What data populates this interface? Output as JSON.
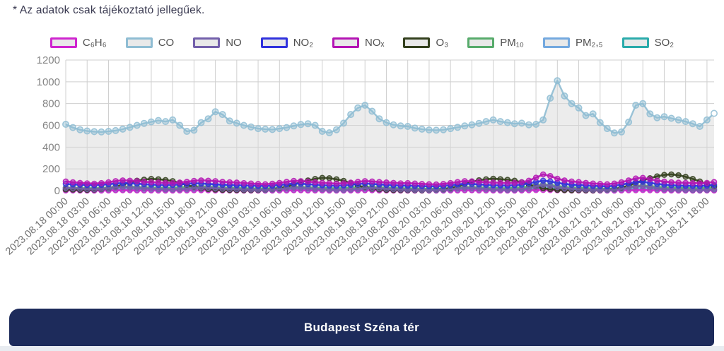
{
  "disclaimer": "* Az adatok csak tájékoztató jellegűek.",
  "station": {
    "name": "Budapest Széna tér"
  },
  "colors": {
    "banner": "#1d2b5b",
    "grid": "#cfcfcf",
    "area_fill": "#d9d9d9"
  },
  "chart_data": {
    "type": "line",
    "title": "",
    "xlabel": "",
    "ylabel": "",
    "y_axis": {
      "min": 0,
      "max": 1200,
      "tick_step": 200,
      "ticks": [
        "0",
        "200",
        "400",
        "600",
        "800",
        "1000",
        "1200"
      ]
    },
    "label_interval": 3,
    "x_labels": [
      "2023.08.18 00:00",
      "2023.08.18 03:00",
      "2023.08.18 06:00",
      "2023.08.18 09:00",
      "2023.08.18 12:00",
      "2023.08.18 15:00",
      "2023.08.18 18:00",
      "2023.08.18 21:00",
      "2023.08.19 00:00",
      "2023.08.19 03:00",
      "2023.08.19 06:00",
      "2023.08.19 09:00",
      "2023.08.19 12:00",
      "2023.08.19 15:00",
      "2023.08.19 18:00",
      "2023.08.19 21:00",
      "2023.08.20 00:00",
      "2023.08.20 03:00",
      "2023.08.20 06:00",
      "2023.08.20 09:00",
      "2023.08.20 12:00",
      "2023.08.20 15:00",
      "2023.08.20 18:00",
      "2023.08.20 21:00",
      "2023.08.21 00:00",
      "2023.08.21 03:00",
      "2023.08.21 06:00",
      "2023.08.21 09:00",
      "2023.08.21 12:00",
      "2023.08.21 15:00",
      "2023.08.21 18:00"
    ],
    "series": [
      {
        "name": "C₆H₆",
        "key": "c6h6",
        "color": "#cf25cf",
        "z": 4,
        "fill": false,
        "values": [
          2,
          2,
          1,
          1,
          1,
          1,
          2,
          3,
          3,
          3,
          2,
          2,
          2,
          1,
          1,
          1,
          2,
          2,
          3,
          3,
          3,
          2,
          2,
          2,
          1,
          1,
          1,
          1,
          1,
          1,
          2,
          2,
          3,
          3,
          2,
          2,
          2,
          1,
          1,
          1,
          2,
          2,
          3,
          3,
          2,
          2,
          1,
          1,
          1,
          1,
          1,
          1,
          1,
          1,
          2,
          2,
          3,
          3,
          2,
          2,
          2,
          1,
          1,
          1,
          2,
          3,
          5,
          6,
          5,
          4,
          3,
          2,
          2,
          1,
          1,
          1,
          1,
          1,
          2,
          3,
          4,
          5,
          4,
          3,
          2,
          2,
          1,
          1,
          1,
          1,
          2,
          2
        ]
      },
      {
        "name": "CO",
        "key": "co",
        "color": "#8fbdd3",
        "z": 0,
        "fill": true,
        "values": [
          610,
          580,
          560,
          548,
          542,
          540,
          545,
          552,
          565,
          582,
          600,
          618,
          632,
          645,
          635,
          650,
          600,
          545,
          555,
          625,
          660,
          725,
          700,
          640,
          620,
          600,
          585,
          570,
          565,
          562,
          570,
          580,
          595,
          608,
          615,
          600,
          545,
          532,
          560,
          620,
          700,
          760,
          785,
          730,
          660,
          625,
          605,
          595,
          590,
          575,
          565,
          558,
          555,
          560,
          570,
          582,
          595,
          605,
          618,
          635,
          650,
          635,
          625,
          615,
          620,
          605,
          610,
          650,
          850,
          1010,
          870,
          800,
          760,
          690,
          705,
          625,
          570,
          530,
          540,
          630,
          785,
          800,
          705,
          670,
          680,
          665,
          650,
          635,
          615,
          590,
          650,
          710
        ]
      },
      {
        "name": "NO",
        "key": "no",
        "color": "#7360ab",
        "z": 6,
        "fill": false,
        "values": [
          25,
          22,
          18,
          15,
          14,
          16,
          22,
          30,
          34,
          30,
          26,
          22,
          18,
          15,
          13,
          12,
          14,
          18,
          24,
          28,
          26,
          22,
          18,
          15,
          13,
          11,
          10,
          9,
          8,
          10,
          15,
          22,
          28,
          26,
          22,
          17,
          13,
          10,
          8,
          8,
          11,
          16,
          22,
          24,
          20,
          16,
          13,
          11,
          9,
          8,
          7,
          6,
          6,
          8,
          12,
          20,
          26,
          24,
          20,
          16,
          12,
          10,
          8,
          9,
          13,
          22,
          38,
          52,
          44,
          32,
          22,
          16,
          12,
          10,
          8,
          7,
          6,
          9,
          16,
          28,
          38,
          42,
          32,
          22,
          15,
          11,
          9,
          8,
          7,
          6,
          8,
          12
        ]
      },
      {
        "name": "NO₂",
        "key": "no2",
        "color": "#3032dd",
        "z": 7,
        "fill": false,
        "values": [
          62,
          58,
          55,
          52,
          50,
          54,
          60,
          66,
          70,
          68,
          65,
          60,
          56,
          53,
          51,
          53,
          58,
          64,
          68,
          66,
          62,
          58,
          55,
          52,
          50,
          48,
          46,
          44,
          43,
          46,
          52,
          60,
          66,
          64,
          60,
          55,
          50,
          47,
          45,
          48,
          54,
          62,
          66,
          63,
          58,
          54,
          50,
          47,
          46,
          44,
          42,
          40,
          40,
          44,
          50,
          58,
          64,
          62,
          58,
          54,
          50,
          48,
          46,
          50,
          56,
          68,
          80,
          92,
          85,
          72,
          62,
          55,
          52,
          48,
          44,
          42,
          40,
          45,
          55,
          68,
          78,
          82,
          72,
          62,
          55,
          50,
          47,
          45,
          44,
          43,
          46,
          52
        ]
      },
      {
        "name": "NOₓ",
        "key": "nox",
        "color": "#b414b4",
        "z": 8,
        "fill": false,
        "values": [
          85,
          78,
          72,
          68,
          65,
          70,
          78,
          88,
          95,
          92,
          88,
          82,
          78,
          75,
          72,
          70,
          75,
          82,
          90,
          95,
          92,
          88,
          82,
          78,
          75,
          70,
          66,
          62,
          60,
          64,
          72,
          82,
          90,
          88,
          84,
          78,
          72,
          68,
          65,
          68,
          74,
          82,
          88,
          85,
          80,
          76,
          72,
          68,
          70,
          66,
          62,
          60,
          58,
          62,
          70,
          80,
          88,
          86,
          82,
          78,
          74,
          72,
          70,
          72,
          78,
          92,
          120,
          150,
          135,
          110,
          95,
          85,
          80,
          72,
          66,
          62,
          60,
          66,
          78,
          95,
          112,
          118,
          105,
          92,
          84,
          78,
          74,
          72,
          70,
          68,
          72,
          80
        ]
      },
      {
        "name": "O₃",
        "key": "o3",
        "color": "#33401d",
        "z": 5,
        "fill": false,
        "values": [
          12,
          10,
          8,
          8,
          10,
          14,
          20,
          35,
          55,
          75,
          92,
          102,
          108,
          105,
          98,
          88,
          72,
          52,
          35,
          22,
          15,
          10,
          8,
          6,
          6,
          5,
          5,
          6,
          8,
          12,
          20,
          38,
          58,
          78,
          95,
          108,
          118,
          115,
          105,
          90,
          70,
          48,
          30,
          18,
          12,
          8,
          6,
          5,
          5,
          5,
          4,
          5,
          7,
          12,
          22,
          40,
          62,
          82,
          96,
          105,
          110,
          106,
          100,
          92,
          78,
          58,
          38,
          22,
          14,
          8,
          5,
          4,
          5,
          4,
          4,
          5,
          8,
          14,
          26,
          48,
          72,
          95,
          115,
          132,
          145,
          150,
          142,
          128,
          108,
          85,
          60,
          40
        ]
      },
      {
        "name": "PM₁₀",
        "key": "pm10",
        "color": "#57ab6b",
        "z": 2,
        "fill": false,
        "values": [
          28,
          26,
          24,
          22,
          22,
          24,
          28,
          34,
          38,
          36,
          33,
          30,
          28,
          26,
          25,
          26,
          30,
          34,
          38,
          40,
          36,
          32,
          28,
          26,
          24,
          22,
          21,
          20,
          20,
          22,
          26,
          32,
          36,
          34,
          31,
          28,
          25,
          23,
          22,
          24,
          28,
          33,
          36,
          34,
          30,
          27,
          24,
          22,
          21,
          20,
          19,
          18,
          18,
          20,
          24,
          30,
          34,
          32,
          30,
          27,
          25,
          23,
          22,
          25,
          30,
          38,
          48,
          58,
          52,
          42,
          34,
          28,
          25,
          22,
          20,
          19,
          18,
          21,
          27,
          36,
          44,
          48,
          42,
          35,
          30,
          27,
          25,
          24,
          23,
          22,
          25,
          30
        ]
      },
      {
        "name": "PM₂,₅",
        "key": "pm25",
        "color": "#74a9df",
        "z": 1,
        "fill": false,
        "values": [
          20,
          19,
          17,
          16,
          16,
          17,
          20,
          24,
          27,
          25,
          23,
          21,
          19,
          18,
          17,
          18,
          21,
          24,
          27,
          28,
          25,
          22,
          20,
          18,
          17,
          16,
          15,
          14,
          14,
          15,
          18,
          22,
          25,
          24,
          22,
          20,
          18,
          16,
          15,
          17,
          20,
          23,
          25,
          24,
          21,
          19,
          17,
          15,
          15,
          14,
          13,
          12,
          12,
          14,
          17,
          21,
          24,
          22,
          21,
          19,
          17,
          16,
          15,
          17,
          21,
          27,
          34,
          41,
          37,
          30,
          24,
          20,
          17,
          15,
          14,
          13,
          12,
          15,
          19,
          25,
          31,
          34,
          30,
          25,
          21,
          19,
          17,
          16,
          16,
          15,
          17,
          21
        ]
      },
      {
        "name": "SO₂",
        "key": "so2",
        "color": "#2aabab",
        "z": 3,
        "fill": false,
        "values": [
          6,
          5,
          5,
          4,
          4,
          5,
          6,
          8,
          9,
          9,
          8,
          7,
          6,
          6,
          5,
          6,
          7,
          8,
          9,
          9,
          8,
          7,
          6,
          5,
          5,
          4,
          4,
          4,
          3,
          4,
          5,
          7,
          8,
          8,
          7,
          6,
          6,
          5,
          5,
          5,
          6,
          7,
          8,
          8,
          7,
          6,
          5,
          5,
          4,
          4,
          3,
          3,
          3,
          4,
          5,
          6,
          8,
          7,
          7,
          6,
          5,
          5,
          5,
          5,
          6,
          9,
          14,
          20,
          17,
          12,
          9,
          7,
          6,
          5,
          4,
          4,
          3,
          4,
          6,
          9,
          12,
          13,
          11,
          9,
          7,
          6,
          5,
          5,
          4,
          4,
          5,
          6
        ]
      }
    ]
  }
}
